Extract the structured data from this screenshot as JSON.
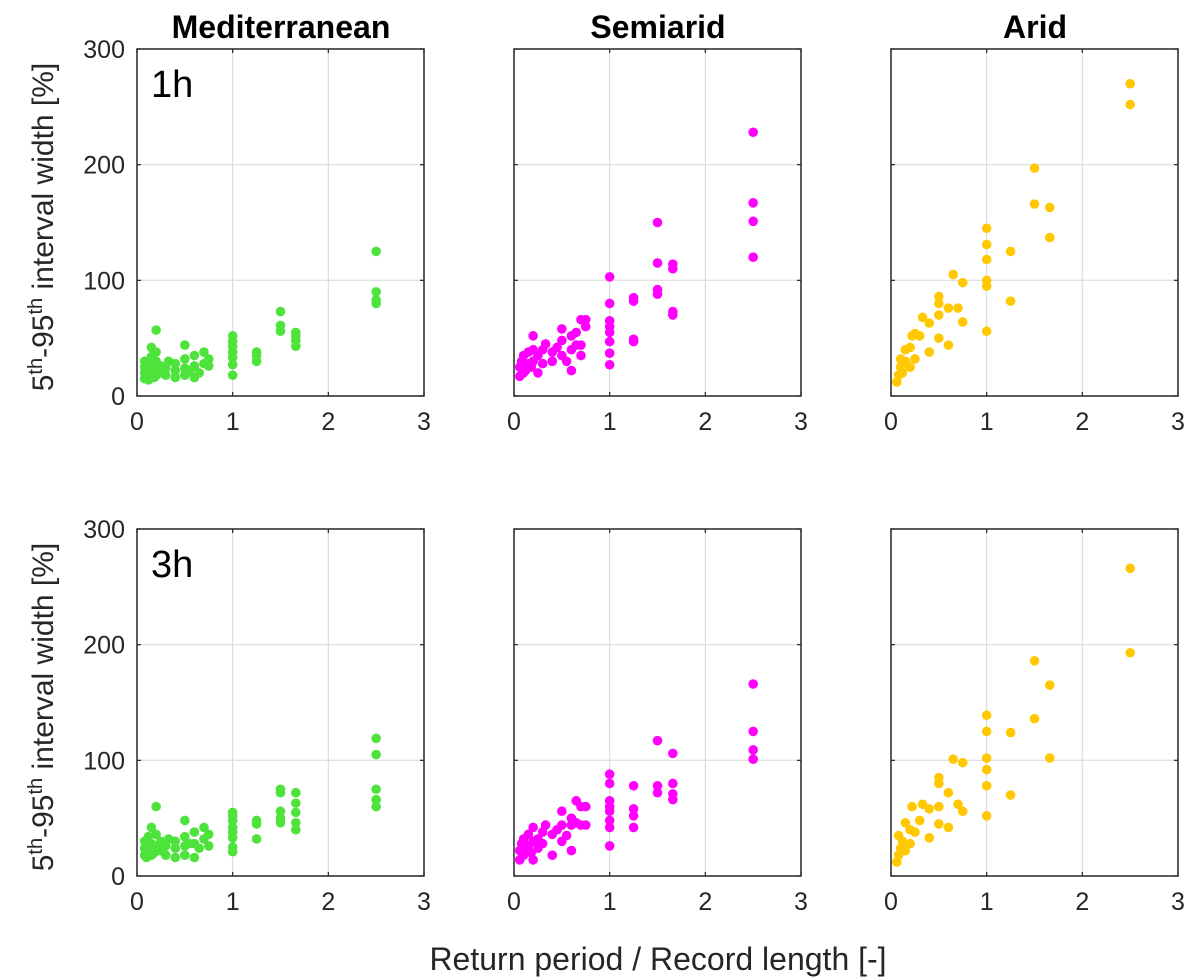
{
  "figure": {
    "x_label": "Return period / Record length [-]",
    "y_label": {
      "p1": "5",
      "s1": "th",
      "p2": "-95",
      "s2": "th",
      "p3": " interval width [%]"
    }
  },
  "chart_data": {
    "type": "scatter",
    "columns": [
      "Mediterranean",
      "Semiarid",
      "Arid"
    ],
    "column_colors": [
      "#4de33a",
      "#ff00ff",
      "#ffc800"
    ],
    "rows": [
      "1h",
      "3h"
    ],
    "xlim": [
      0,
      3
    ],
    "ylim": [
      0,
      300
    ],
    "xticks": [
      0,
      1,
      2,
      3
    ],
    "yticks": [
      0,
      100,
      200,
      300
    ],
    "grid": true,
    "panels": [
      {
        "region": "Mediterranean",
        "duration": "1h",
        "points": [
          [
            0.08,
            15
          ],
          [
            0.08,
            20
          ],
          [
            0.08,
            25
          ],
          [
            0.08,
            30
          ],
          [
            0.1,
            18
          ],
          [
            0.1,
            22
          ],
          [
            0.12,
            14
          ],
          [
            0.12,
            28
          ],
          [
            0.15,
            20
          ],
          [
            0.15,
            34
          ],
          [
            0.15,
            42
          ],
          [
            0.18,
            16
          ],
          [
            0.18,
            24
          ],
          [
            0.2,
            18
          ],
          [
            0.2,
            30
          ],
          [
            0.2,
            38
          ],
          [
            0.2,
            57
          ],
          [
            0.25,
            20
          ],
          [
            0.25,
            26
          ],
          [
            0.3,
            18
          ],
          [
            0.3,
            24
          ],
          [
            0.33,
            30
          ],
          [
            0.4,
            16
          ],
          [
            0.4,
            22
          ],
          [
            0.4,
            28
          ],
          [
            0.5,
            18
          ],
          [
            0.5,
            24
          ],
          [
            0.5,
            32
          ],
          [
            0.5,
            44
          ],
          [
            0.55,
            22
          ],
          [
            0.6,
            16
          ],
          [
            0.6,
            26
          ],
          [
            0.6,
            35
          ],
          [
            0.65,
            20
          ],
          [
            0.7,
            28
          ],
          [
            0.7,
            38
          ],
          [
            0.75,
            26
          ],
          [
            0.75,
            32
          ],
          [
            1,
            18
          ],
          [
            1,
            27
          ],
          [
            1,
            33
          ],
          [
            1,
            38
          ],
          [
            1,
            43
          ],
          [
            1,
            47
          ],
          [
            1,
            52
          ],
          [
            1.25,
            30
          ],
          [
            1.25,
            35
          ],
          [
            1.25,
            38
          ],
          [
            1.5,
            56
          ],
          [
            1.5,
            61
          ],
          [
            1.5,
            73
          ],
          [
            1.66,
            43
          ],
          [
            1.66,
            48
          ],
          [
            1.66,
            52
          ],
          [
            1.66,
            55
          ],
          [
            2.5,
            80
          ],
          [
            2.5,
            83
          ],
          [
            2.5,
            90
          ],
          [
            2.5,
            125
          ]
        ]
      },
      {
        "region": "Semiarid",
        "duration": "1h",
        "points": [
          [
            0.06,
            17
          ],
          [
            0.06,
            25
          ],
          [
            0.08,
            30
          ],
          [
            0.1,
            20
          ],
          [
            0.1,
            35
          ],
          [
            0.12,
            22
          ],
          [
            0.15,
            28
          ],
          [
            0.15,
            38
          ],
          [
            0.18,
            25
          ],
          [
            0.2,
            30
          ],
          [
            0.2,
            40
          ],
          [
            0.2,
            52
          ],
          [
            0.25,
            20
          ],
          [
            0.25,
            35
          ],
          [
            0.3,
            28
          ],
          [
            0.3,
            40
          ],
          [
            0.33,
            45
          ],
          [
            0.4,
            30
          ],
          [
            0.4,
            38
          ],
          [
            0.45,
            42
          ],
          [
            0.5,
            35
          ],
          [
            0.5,
            48
          ],
          [
            0.5,
            58
          ],
          [
            0.55,
            30
          ],
          [
            0.6,
            22
          ],
          [
            0.6,
            40
          ],
          [
            0.6,
            52
          ],
          [
            0.65,
            44
          ],
          [
            0.65,
            55
          ],
          [
            0.7,
            35
          ],
          [
            0.7,
            44
          ],
          [
            0.7,
            66
          ],
          [
            0.75,
            60
          ],
          [
            0.75,
            66
          ],
          [
            1,
            27
          ],
          [
            1,
            37
          ],
          [
            1,
            47
          ],
          [
            1,
            55
          ],
          [
            1,
            60
          ],
          [
            1,
            65
          ],
          [
            1,
            80
          ],
          [
            1,
            103
          ],
          [
            1.25,
            47
          ],
          [
            1.25,
            49
          ],
          [
            1.25,
            82
          ],
          [
            1.25,
            85
          ],
          [
            1.5,
            88
          ],
          [
            1.5,
            92
          ],
          [
            1.5,
            115
          ],
          [
            1.5,
            150
          ],
          [
            1.66,
            70
          ],
          [
            1.66,
            73
          ],
          [
            1.66,
            110
          ],
          [
            1.66,
            114
          ],
          [
            2.5,
            120
          ],
          [
            2.5,
            151
          ],
          [
            2.5,
            167
          ],
          [
            2.5,
            228
          ]
        ]
      },
      {
        "region": "Arid",
        "duration": "1h",
        "points": [
          [
            0.06,
            12
          ],
          [
            0.08,
            18
          ],
          [
            0.1,
            25
          ],
          [
            0.1,
            32
          ],
          [
            0.12,
            20
          ],
          [
            0.15,
            30
          ],
          [
            0.15,
            40
          ],
          [
            0.2,
            25
          ],
          [
            0.2,
            42
          ],
          [
            0.22,
            52
          ],
          [
            0.25,
            32
          ],
          [
            0.25,
            54
          ],
          [
            0.3,
            52
          ],
          [
            0.33,
            68
          ],
          [
            0.4,
            38
          ],
          [
            0.4,
            63
          ],
          [
            0.5,
            50
          ],
          [
            0.5,
            70
          ],
          [
            0.5,
            80
          ],
          [
            0.5,
            86
          ],
          [
            0.6,
            44
          ],
          [
            0.6,
            76
          ],
          [
            0.65,
            105
          ],
          [
            0.7,
            76
          ],
          [
            0.75,
            64
          ],
          [
            0.75,
            98
          ],
          [
            1,
            56
          ],
          [
            1,
            95
          ],
          [
            1,
            100
          ],
          [
            1,
            118
          ],
          [
            1,
            131
          ],
          [
            1,
            145
          ],
          [
            1.25,
            82
          ],
          [
            1.25,
            125
          ],
          [
            1.5,
            166
          ],
          [
            1.5,
            197
          ],
          [
            1.66,
            137
          ],
          [
            1.66,
            163
          ],
          [
            2.5,
            252
          ],
          [
            2.5,
            270
          ]
        ]
      },
      {
        "region": "Mediterranean",
        "duration": "3h",
        "points": [
          [
            0.08,
            18
          ],
          [
            0.08,
            24
          ],
          [
            0.08,
            30
          ],
          [
            0.1,
            16
          ],
          [
            0.1,
            26
          ],
          [
            0.12,
            22
          ],
          [
            0.12,
            34
          ],
          [
            0.15,
            18
          ],
          [
            0.15,
            28
          ],
          [
            0.15,
            42
          ],
          [
            0.18,
            20
          ],
          [
            0.2,
            26
          ],
          [
            0.2,
            36
          ],
          [
            0.2,
            60
          ],
          [
            0.25,
            22
          ],
          [
            0.25,
            30
          ],
          [
            0.3,
            18
          ],
          [
            0.3,
            26
          ],
          [
            0.33,
            32
          ],
          [
            0.4,
            16
          ],
          [
            0.4,
            24
          ],
          [
            0.4,
            30
          ],
          [
            0.5,
            18
          ],
          [
            0.5,
            26
          ],
          [
            0.5,
            34
          ],
          [
            0.5,
            48
          ],
          [
            0.55,
            28
          ],
          [
            0.6,
            16
          ],
          [
            0.6,
            28
          ],
          [
            0.6,
            38
          ],
          [
            0.65,
            24
          ],
          [
            0.7,
            32
          ],
          [
            0.7,
            42
          ],
          [
            0.75,
            26
          ],
          [
            0.75,
            36
          ],
          [
            1,
            21
          ],
          [
            1,
            25
          ],
          [
            1,
            33
          ],
          [
            1,
            38
          ],
          [
            1,
            42
          ],
          [
            1,
            48
          ],
          [
            1,
            52
          ],
          [
            1,
            55
          ],
          [
            1.25,
            32
          ],
          [
            1.25,
            45
          ],
          [
            1.25,
            48
          ],
          [
            1.5,
            46
          ],
          [
            1.5,
            50
          ],
          [
            1.5,
            56
          ],
          [
            1.5,
            72
          ],
          [
            1.5,
            75
          ],
          [
            1.66,
            40
          ],
          [
            1.66,
            46
          ],
          [
            1.66,
            55
          ],
          [
            1.66,
            63
          ],
          [
            1.66,
            72
          ],
          [
            2.5,
            60
          ],
          [
            2.5,
            66
          ],
          [
            2.5,
            75
          ],
          [
            2.5,
            105
          ],
          [
            2.5,
            119
          ]
        ]
      },
      {
        "region": "Semiarid",
        "duration": "3h",
        "points": [
          [
            0.06,
            14
          ],
          [
            0.06,
            22
          ],
          [
            0.08,
            28
          ],
          [
            0.1,
            18
          ],
          [
            0.1,
            32
          ],
          [
            0.12,
            24
          ],
          [
            0.15,
            26
          ],
          [
            0.15,
            36
          ],
          [
            0.18,
            20
          ],
          [
            0.2,
            14
          ],
          [
            0.2,
            30
          ],
          [
            0.2,
            42
          ],
          [
            0.25,
            24
          ],
          [
            0.25,
            32
          ],
          [
            0.3,
            28
          ],
          [
            0.3,
            38
          ],
          [
            0.33,
            44
          ],
          [
            0.4,
            18
          ],
          [
            0.4,
            36
          ],
          [
            0.45,
            40
          ],
          [
            0.5,
            30
          ],
          [
            0.5,
            44
          ],
          [
            0.5,
            56
          ],
          [
            0.55,
            35
          ],
          [
            0.6,
            22
          ],
          [
            0.6,
            44
          ],
          [
            0.6,
            50
          ],
          [
            0.65,
            46
          ],
          [
            0.65,
            65
          ],
          [
            0.7,
            44
          ],
          [
            0.7,
            60
          ],
          [
            0.75,
            44
          ],
          [
            0.75,
            60
          ],
          [
            1,
            26
          ],
          [
            1,
            42
          ],
          [
            1,
            48
          ],
          [
            1,
            56
          ],
          [
            1,
            60
          ],
          [
            1,
            65
          ],
          [
            1,
            80
          ],
          [
            1,
            88
          ],
          [
            1.25,
            42
          ],
          [
            1.25,
            52
          ],
          [
            1.25,
            58
          ],
          [
            1.25,
            78
          ],
          [
            1.5,
            72
          ],
          [
            1.5,
            78
          ],
          [
            1.5,
            117
          ],
          [
            1.66,
            66
          ],
          [
            1.66,
            71
          ],
          [
            1.66,
            80
          ],
          [
            1.66,
            106
          ],
          [
            2.5,
            101
          ],
          [
            2.5,
            109
          ],
          [
            2.5,
            125
          ],
          [
            2.5,
            166
          ]
        ]
      },
      {
        "region": "Arid",
        "duration": "3h",
        "points": [
          [
            0.06,
            12
          ],
          [
            0.08,
            18
          ],
          [
            0.08,
            35
          ],
          [
            0.1,
            24
          ],
          [
            0.12,
            30
          ],
          [
            0.15,
            22
          ],
          [
            0.15,
            46
          ],
          [
            0.2,
            28
          ],
          [
            0.2,
            40
          ],
          [
            0.22,
            60
          ],
          [
            0.25,
            38
          ],
          [
            0.3,
            48
          ],
          [
            0.33,
            62
          ],
          [
            0.4,
            33
          ],
          [
            0.4,
            58
          ],
          [
            0.5,
            45
          ],
          [
            0.5,
            60
          ],
          [
            0.5,
            80
          ],
          [
            0.5,
            85
          ],
          [
            0.6,
            42
          ],
          [
            0.6,
            72
          ],
          [
            0.65,
            101
          ],
          [
            0.7,
            62
          ],
          [
            0.75,
            56
          ],
          [
            0.75,
            98
          ],
          [
            1,
            52
          ],
          [
            1,
            78
          ],
          [
            1,
            92
          ],
          [
            1,
            102
          ],
          [
            1,
            125
          ],
          [
            1,
            139
          ],
          [
            1.25,
            70
          ],
          [
            1.25,
            124
          ],
          [
            1.5,
            136
          ],
          [
            1.5,
            186
          ],
          [
            1.66,
            102
          ],
          [
            1.66,
            165
          ],
          [
            2.5,
            193
          ],
          [
            2.5,
            266
          ]
        ]
      }
    ]
  }
}
